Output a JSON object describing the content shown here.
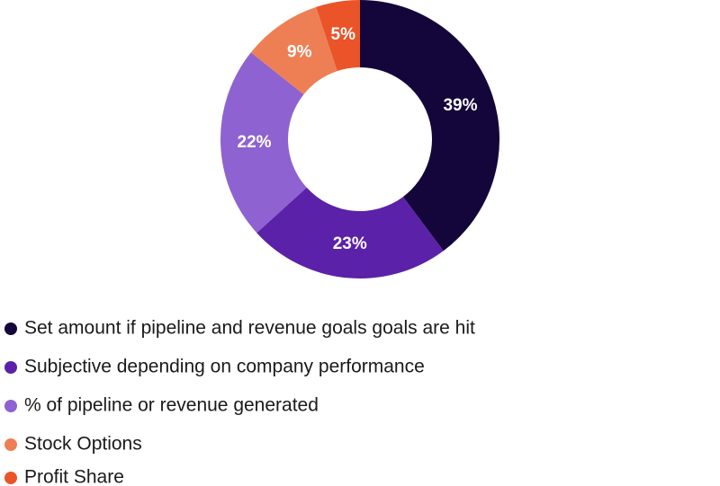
{
  "chart_data": {
    "type": "donut",
    "categories": [
      "Set amount if pipeline and revenue goals goals are hit",
      "Subjective depending on company performance",
      "% of pipeline or revenue generated",
      "Stock Options",
      "Profit Share"
    ],
    "values": [
      39,
      23,
      22,
      9,
      5
    ],
    "value_labels": [
      "39%",
      "23%",
      "22%",
      "9%",
      "5%"
    ],
    "colors": [
      "#14063a",
      "#5b21a8",
      "#8e62d0",
      "#ee7f55",
      "#ea5428"
    ]
  }
}
